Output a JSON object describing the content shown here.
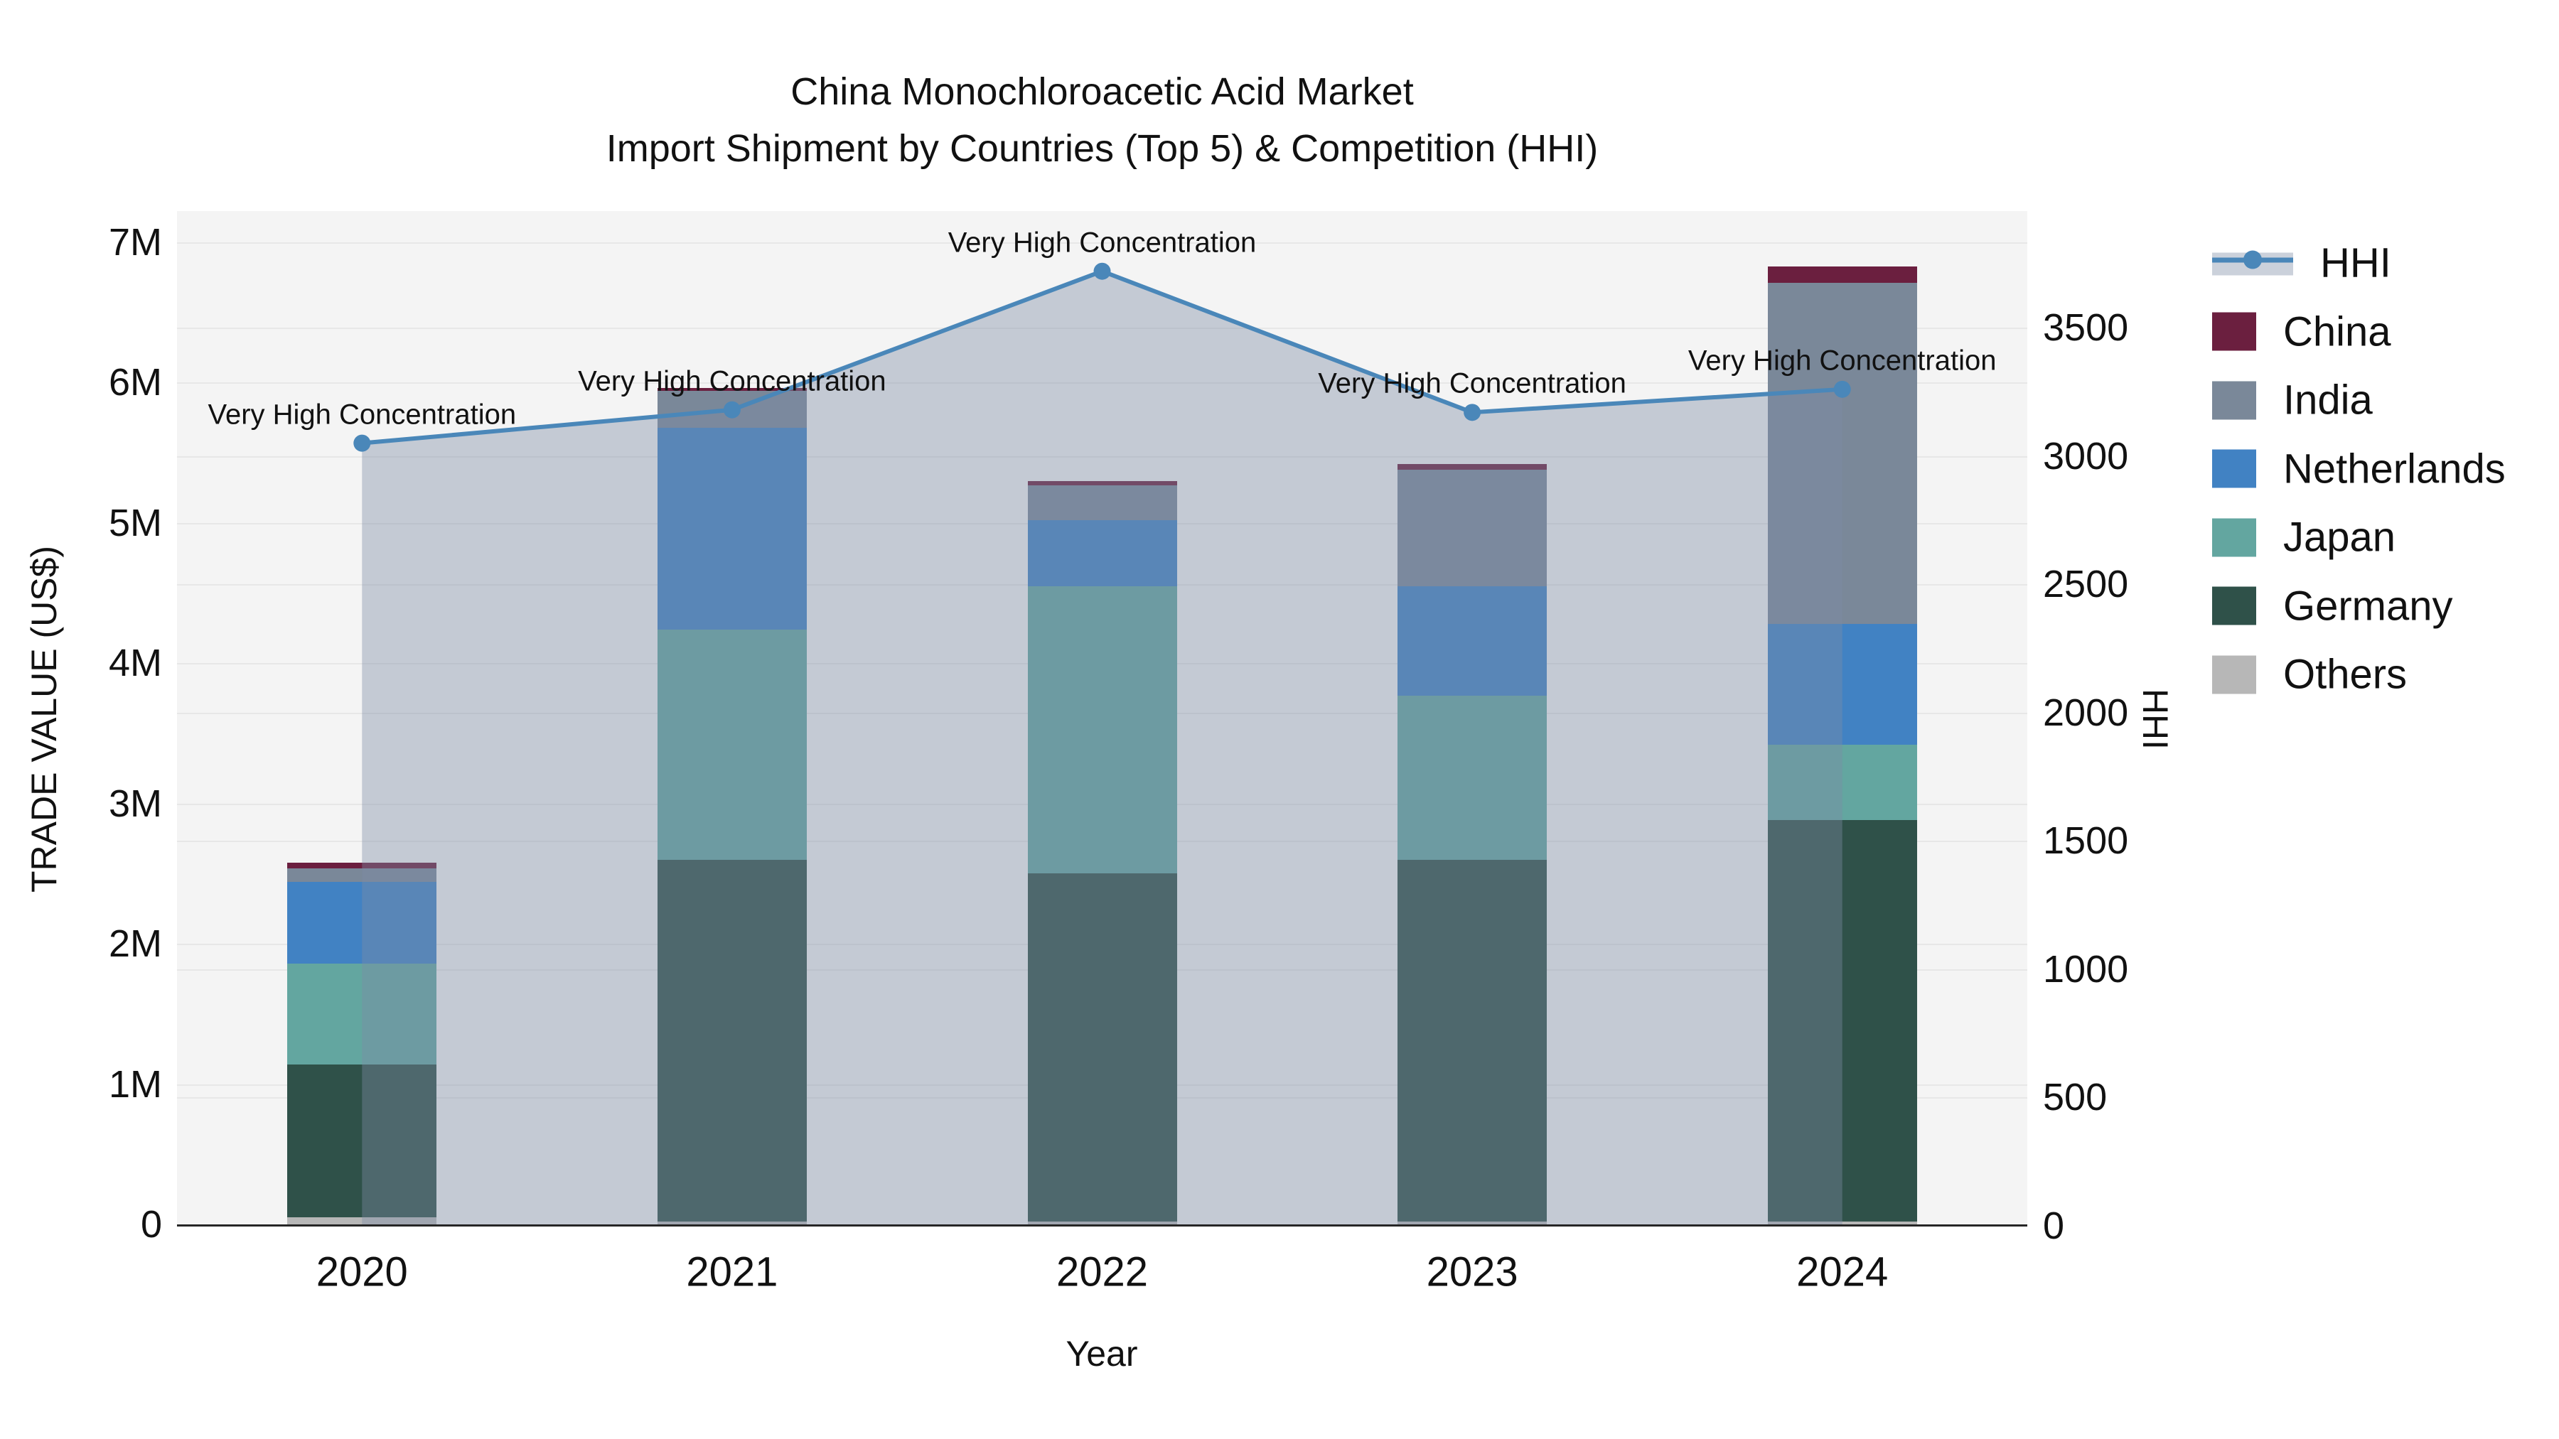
{
  "title": {
    "line1": "China Monochloroacetic Acid Market",
    "line2": "Import Shipment by Countries (Top 5) & Competition (HHI)"
  },
  "axes": {
    "x": {
      "title": "Year",
      "categories": [
        "2020",
        "2021",
        "2022",
        "2023",
        "2024"
      ]
    },
    "y_left": {
      "title": "TRADE VALUE (US$)",
      "tick_labels": [
        "0",
        "1M",
        "2M",
        "3M",
        "4M",
        "5M",
        "6M",
        "7M"
      ],
      "tick_values_musd": [
        0,
        1,
        2,
        3,
        4,
        5,
        6,
        7
      ]
    },
    "y_right": {
      "title": "HHI",
      "tick_labels": [
        "0",
        "500",
        "1000",
        "1500",
        "2000",
        "2500",
        "3000",
        "3500"
      ],
      "tick_values": [
        0,
        500,
        1000,
        1500,
        2000,
        2500,
        3000,
        3500
      ]
    }
  },
  "chart_data": {
    "type": "bar",
    "stacked": true,
    "categories": [
      "2020",
      "2021",
      "2022",
      "2023",
      "2024"
    ],
    "unit": "US$ millions",
    "title": "China Monochloroacetic Acid Market — Import Shipment by Countries (Top 5) & Competition (HHI)",
    "xlabel": "Year",
    "ylabel_left": "TRADE VALUE (US$)",
    "ylabel_right": "HHI",
    "ylim_left_musd": [
      0,
      7.22
    ],
    "ylim_right": [
      0,
      3950
    ],
    "grid": true,
    "legend_position": "right",
    "series": [
      {
        "name": "China",
        "color": "#6b1f3f",
        "values_musd": [
          0.04,
          0.02,
          0.03,
          0.04,
          0.12
        ]
      },
      {
        "name": "India",
        "color": "#7a8899",
        "values_musd": [
          0.1,
          0.26,
          0.25,
          0.83,
          2.43
        ]
      },
      {
        "name": "Netherlands",
        "color": "#4182c3",
        "values_musd": [
          0.58,
          1.44,
          0.47,
          0.78,
          0.86
        ]
      },
      {
        "name": "Japan",
        "color": "#63a6a0",
        "values_musd": [
          0.72,
          1.64,
          2.05,
          1.17,
          0.54
        ]
      },
      {
        "name": "Germany",
        "color": "#2f5149",
        "values_musd": [
          1.09,
          2.58,
          2.48,
          2.58,
          2.86
        ]
      },
      {
        "name": "Others",
        "color": "#b7b7b7",
        "values_musd": [
          0.05,
          0.02,
          0.02,
          0.02,
          0.02
        ]
      }
    ],
    "stack_order_bottom_to_top": [
      "Others",
      "Germany",
      "Japan",
      "Netherlands",
      "India",
      "China"
    ],
    "line_series": {
      "name": "HHI",
      "axis": "right",
      "color": "#4a87b9",
      "area_fill": "rgba(125,140,165,0.40)",
      "values": [
        3050,
        3180,
        3720,
        3170,
        3260
      ]
    },
    "annotations": [
      {
        "category": "2020",
        "text": "Very High Concentration"
      },
      {
        "category": "2021",
        "text": "Very High Concentration"
      },
      {
        "category": "2022",
        "text": "Very High Concentration"
      },
      {
        "category": "2023",
        "text": "Very High Concentration"
      },
      {
        "category": "2024",
        "text": "Very High Concentration"
      }
    ]
  },
  "legend": {
    "entries": [
      "HHI",
      "China",
      "India",
      "Netherlands",
      "Japan",
      "Germany",
      "Others"
    ]
  },
  "colors": {
    "plot_background": "#f4f4f4",
    "gridline": "#e7e7e7",
    "axis_line": "#262626",
    "hhi_line": "#4a87b9",
    "hhi_area": "rgba(125,140,165,0.40)",
    "legend_band": "#cbd1db",
    "text": "#111111"
  }
}
